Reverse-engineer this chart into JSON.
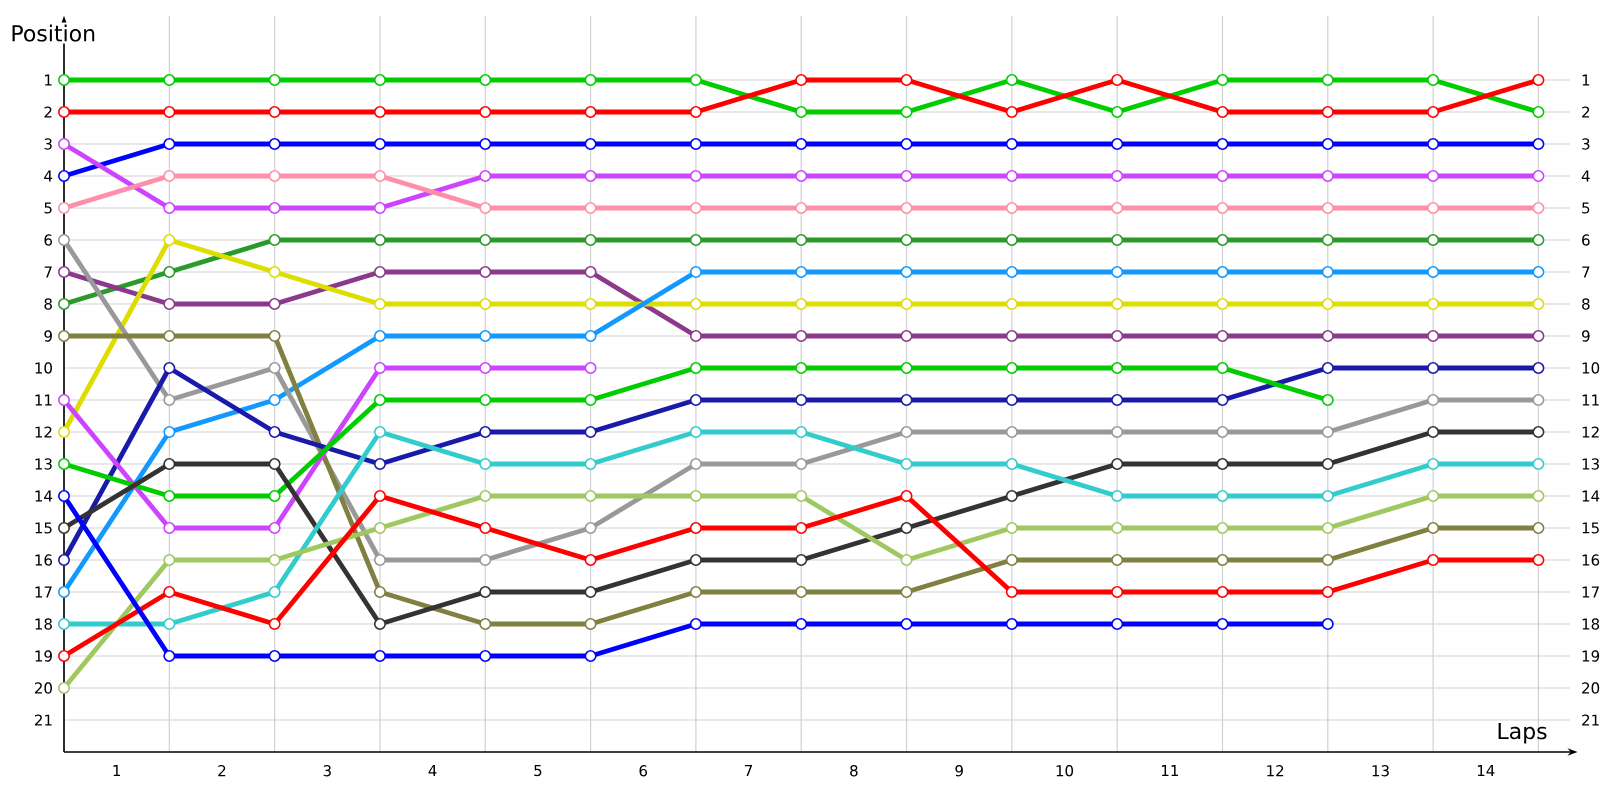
{
  "chart_data": {
    "type": "line",
    "xlabel": "Laps",
    "ylabel": "Position",
    "x": [
      0,
      1,
      2,
      3,
      4,
      5,
      6,
      7,
      8,
      9,
      10,
      11,
      12,
      13,
      14
    ],
    "xlim": [
      0,
      14.3
    ],
    "xticks": [
      {
        "value": 0,
        "label": null
      },
      {
        "value": 1,
        "label": null
      },
      {
        "value": 2,
        "label": null
      },
      {
        "value": 3,
        "label": null
      },
      {
        "value": 4,
        "label": null
      },
      {
        "value": 5,
        "label": null
      },
      {
        "value": 6,
        "label": null
      },
      {
        "value": 7,
        "label": null
      },
      {
        "value": 8,
        "label": null
      },
      {
        "value": 9,
        "label": null
      },
      {
        "value": 10,
        "label": null
      },
      {
        "value": 11,
        "label": null
      },
      {
        "value": 12,
        "label": null
      },
      {
        "value": 13,
        "label": null
      },
      {
        "value": 14,
        "label": null
      },
      {
        "value": 0.5,
        "label": "1"
      },
      {
        "value": 1.5,
        "label": "2"
      },
      {
        "value": 2.5,
        "label": "3"
      },
      {
        "value": 3.5,
        "label": "4"
      },
      {
        "value": 4.5,
        "label": "5"
      },
      {
        "value": 5.5,
        "label": "6"
      },
      {
        "value": 6.5,
        "label": "7"
      },
      {
        "value": 7.5,
        "label": "8"
      },
      {
        "value": 8.5,
        "label": "9"
      },
      {
        "value": 9.5,
        "label": "10"
      },
      {
        "value": 10.5,
        "label": "11"
      },
      {
        "value": 11.5,
        "label": "12"
      },
      {
        "value": 12.5,
        "label": "13"
      },
      {
        "value": 13.5,
        "label": "14"
      }
    ],
    "ylim": [
      22,
      -1
    ],
    "yticks": [
      1,
      2,
      3,
      4,
      5,
      6,
      7,
      8,
      9,
      10,
      11,
      12,
      13,
      14,
      15,
      16,
      17,
      18,
      19,
      20,
      21
    ],
    "y2lim": [
      22,
      -1
    ],
    "y2ticks": [
      1,
      2,
      3,
      4,
      5,
      6,
      7,
      8,
      9,
      10,
      11,
      12,
      13,
      14,
      15,
      16,
      17,
      18,
      19,
      20,
      21
    ],
    "grid": true,
    "marker": "circle",
    "line_style": "solid",
    "series": [
      {
        "color": "#00cc00",
        "values": [
          1,
          1,
          1,
          1,
          1,
          1,
          1,
          2,
          2,
          1,
          2,
          1,
          1,
          1,
          2
        ]
      },
      {
        "color": "#ff0000",
        "values": [
          2,
          2,
          2,
          2,
          2,
          2,
          2,
          1,
          1,
          2,
          1,
          2,
          2,
          2,
          1
        ]
      },
      {
        "color": "#0000ff",
        "values": [
          4,
          3,
          3,
          3,
          3,
          3,
          3,
          3,
          3,
          3,
          3,
          3,
          3,
          3,
          3
        ]
      },
      {
        "color": "#cc44ff",
        "values": [
          3,
          5,
          5,
          5,
          4,
          4,
          4,
          4,
          4,
          4,
          4,
          4,
          4,
          4,
          4
        ]
      },
      {
        "color": "#ff8fa8",
        "values": [
          5,
          4,
          4,
          4,
          5,
          5,
          5,
          5,
          5,
          5,
          5,
          5,
          5,
          5,
          5
        ]
      },
      {
        "color": "#2a9a2a",
        "values": [
          8,
          7,
          6,
          6,
          6,
          6,
          6,
          6,
          6,
          6,
          6,
          6,
          6,
          6,
          6
        ]
      },
      {
        "color": "#8b3a8b",
        "values": [
          7,
          8,
          8,
          7,
          7,
          7,
          9,
          9,
          9,
          9,
          9,
          9,
          9,
          9,
          9
        ]
      },
      {
        "color": "#dddd00",
        "values": [
          12,
          6,
          7,
          8,
          8,
          8,
          8,
          8,
          8,
          8,
          8,
          8,
          8,
          8,
          8
        ]
      },
      {
        "color": "#1199ff",
        "values": [
          17,
          12,
          11,
          9,
          9,
          9,
          7,
          7,
          7,
          7,
          7,
          7,
          7,
          7,
          7
        ]
      },
      {
        "color": "#999999",
        "values": [
          6,
          11,
          10,
          16,
          16,
          15,
          13,
          13,
          12,
          12,
          12,
          12,
          12,
          11,
          11
        ]
      },
      {
        "color": "#808040",
        "values": [
          9,
          9,
          9,
          17,
          18,
          18,
          17,
          17,
          17,
          16,
          16,
          16,
          16,
          15,
          15
        ]
      },
      {
        "color": "#1a1aaa",
        "values": [
          16,
          10,
          12,
          13,
          12,
          12,
          11,
          11,
          11,
          11,
          11,
          11,
          10,
          10,
          10
        ]
      },
      {
        "color": "#cc44ff",
        "values": [
          11,
          15,
          15,
          10,
          10,
          10,
          null,
          null,
          null,
          null,
          null,
          null,
          null,
          null,
          null
        ]
      },
      {
        "color": "#00cc00",
        "values": [
          13,
          14,
          14,
          11,
          11,
          11,
          10,
          10,
          10,
          10,
          10,
          10,
          11,
          null,
          null
        ]
      },
      {
        "color": "#333333",
        "values": [
          15,
          13,
          13,
          18,
          17,
          17,
          16,
          16,
          15,
          14,
          13,
          13,
          13,
          12,
          12
        ]
      },
      {
        "color": "#33cccc",
        "values": [
          18,
          18,
          17,
          12,
          13,
          13,
          12,
          12,
          13,
          13,
          14,
          14,
          14,
          13,
          13
        ]
      },
      {
        "color": "#a0c860",
        "values": [
          20,
          16,
          16,
          15,
          14,
          14,
          14,
          14,
          16,
          15,
          15,
          15,
          15,
          14,
          14
        ]
      },
      {
        "color": "#ff0000",
        "values": [
          19,
          17,
          18,
          14,
          15,
          16,
          15,
          15,
          14,
          17,
          17,
          17,
          17,
          16,
          16
        ]
      },
      {
        "color": "#0000ff",
        "values": [
          14,
          19,
          19,
          19,
          19,
          19,
          18,
          18,
          18,
          18,
          18,
          18,
          18,
          null,
          null
        ]
      }
    ]
  }
}
